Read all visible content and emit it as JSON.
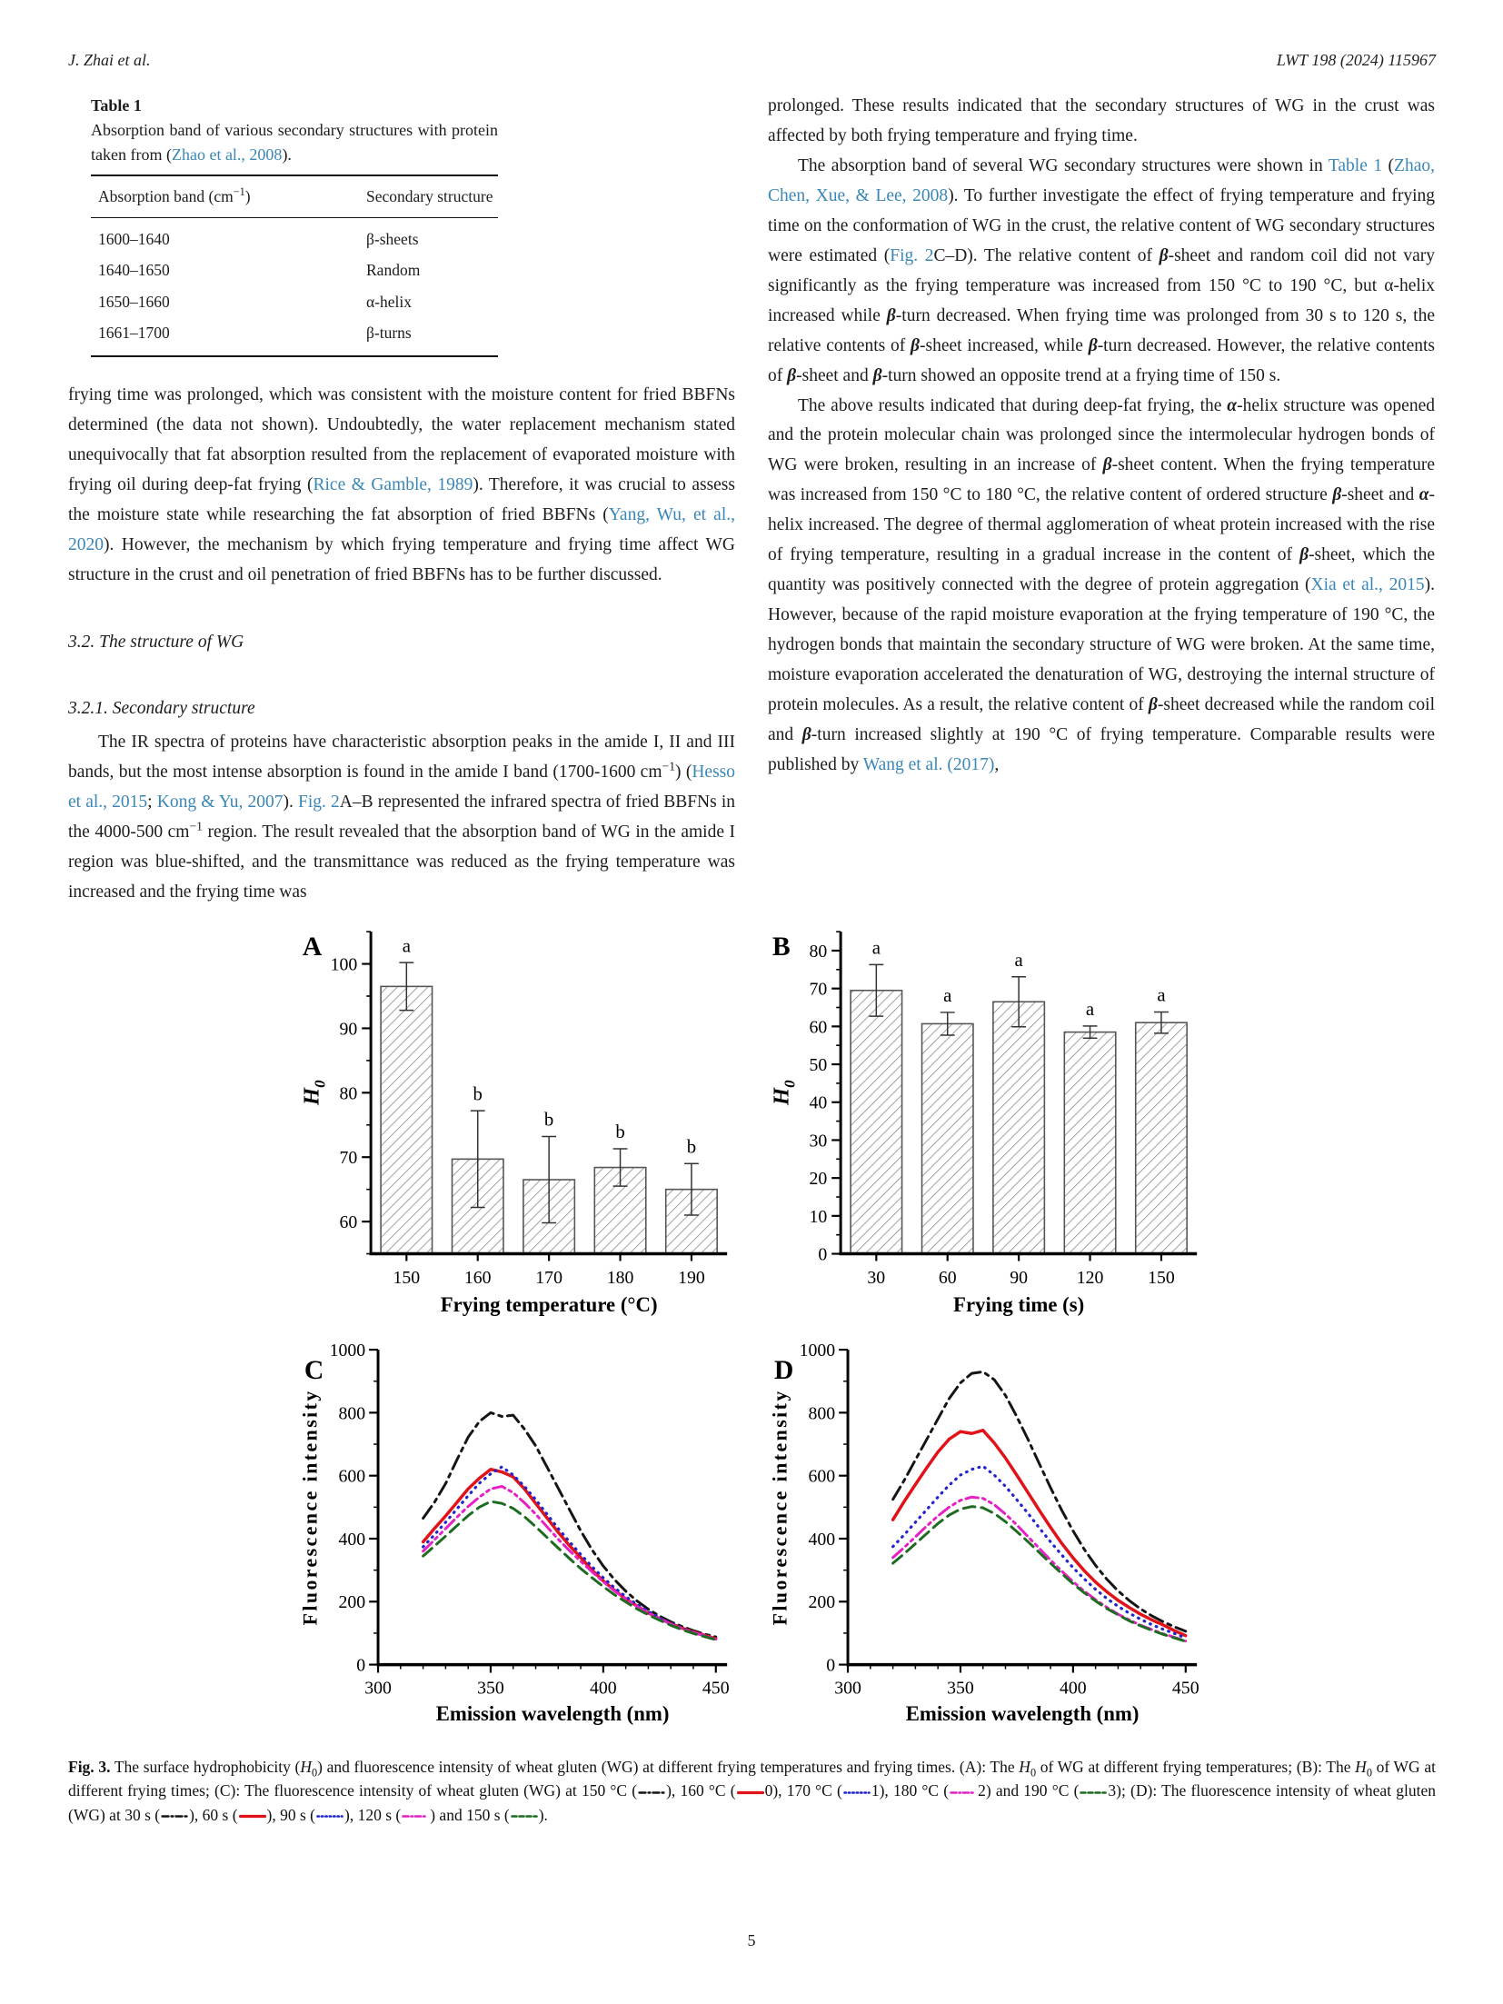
{
  "colors": {
    "link": "#3a87b7",
    "axis": "#000000",
    "hatch": "#8f8f8f",
    "bar_edge": "#555555"
  },
  "page": {
    "header_left": "J. Zhai et al.",
    "header_right": "LWT 198 (2024) 115967",
    "page_number": "5"
  },
  "table1": {
    "label": "Table 1",
    "caption_segments": [
      {
        "text": "Absorption band of various secondary structures with protein taken from ("
      },
      {
        "text": "Zhao et al., 2008",
        "style": "link"
      },
      {
        "text": ")."
      }
    ],
    "header_col1_segments": [
      {
        "text": "Absorption band (cm"
      },
      {
        "text": "−1",
        "style": "sup"
      },
      {
        "text": ")"
      }
    ],
    "header_col2": "Secondary structure",
    "rows": [
      [
        "1600–1640",
        "β-sheets"
      ],
      [
        "1640–1650",
        "Random"
      ],
      [
        "1650–1660",
        "α-helix"
      ],
      [
        "1661–1700",
        "β-turns"
      ]
    ]
  },
  "left_col": {
    "para1_segments": [
      {
        "text": "frying time was prolonged, which was consistent with the moisture content for fried BBFNs determined (the data not shown). Undoubtedly, the water replacement mechanism stated unequivocally that fat absorption resulted from the replacement of evaporated moisture with frying oil during deep-fat frying ("
      },
      {
        "text": "Rice & Gamble, 1989",
        "style": "link"
      },
      {
        "text": "). Therefore, it was crucial to assess the moisture state while researching the fat absorption of fried BBFNs ("
      },
      {
        "text": "Yang, Wu, et al., 2020",
        "style": "link"
      },
      {
        "text": "). However, the mechanism by which frying temperature and frying time affect WG structure in the crust and oil penetration of fried BBFNs has to be further discussed."
      }
    ],
    "section_heading": "3.2.  The structure of WG",
    "subsection_heading": "3.2.1.  Secondary structure",
    "para2_segments": [
      {
        "text": "The IR spectra of proteins have characteristic absorption peaks in the amide I, II and III bands, but the most intense absorption is found in the amide I band (1700-1600 cm"
      },
      {
        "text": "−1",
        "style": "sup"
      },
      {
        "text": ") ("
      },
      {
        "text": "Hesso et al., 2015",
        "style": "link"
      },
      {
        "text": "; "
      },
      {
        "text": "Kong & Yu, 2007",
        "style": "link"
      },
      {
        "text": "). "
      },
      {
        "text": "Fig. 2",
        "style": "link"
      },
      {
        "text": "A–B represented the infrared spectra of fried BBFNs in the 4000-500 cm"
      },
      {
        "text": "−1",
        "style": "sup"
      },
      {
        "text": " region. The result revealed that the absorption band of WG in the amide I region was blue-shifted, and the transmittance was reduced as the frying temperature was increased and the frying time was"
      }
    ]
  },
  "right_col": {
    "para1_segments": [
      {
        "text": "prolonged. These results indicated that the secondary structures of WG in the crust was affected by both frying temperature and frying time."
      }
    ],
    "para2_segments": [
      {
        "text": "The absorption band of several WG secondary structures were shown in "
      },
      {
        "text": "Table 1",
        "style": "link"
      },
      {
        "text": " ("
      },
      {
        "text": "Zhao, Chen, Xue, & Lee, 2008",
        "style": "link"
      },
      {
        "text": "). To further investigate the effect of frying temperature and frying time on the conformation of WG in the crust, the relative content of WG secondary structures were estimated ("
      },
      {
        "text": "Fig. 2",
        "style": "link"
      },
      {
        "text": "C–D). The relative content of "
      },
      {
        "text": "β",
        "style": "bi"
      },
      {
        "text": "-sheet and random coil did not vary significantly as the frying temperature was increased from 150 °C to 190 °C, but α-helix increased while "
      },
      {
        "text": "β",
        "style": "bi"
      },
      {
        "text": "-turn decreased. When frying time was prolonged from 30 s to 120 s, the relative contents of "
      },
      {
        "text": "β",
        "style": "bi"
      },
      {
        "text": "-sheet increased, while "
      },
      {
        "text": "β",
        "style": "bi"
      },
      {
        "text": "-turn decreased. However, the relative contents of "
      },
      {
        "text": "β",
        "style": "bi"
      },
      {
        "text": "-sheet and "
      },
      {
        "text": "β",
        "style": "bi"
      },
      {
        "text": "-turn showed an opposite trend at a frying time of 150 s."
      }
    ],
    "para3_segments": [
      {
        "text": "The above results indicated that during deep-fat frying, the "
      },
      {
        "text": "α",
        "style": "bi"
      },
      {
        "text": "-helix structure was opened and the protein molecular chain was prolonged since the intermolecular hydrogen bonds of WG were broken, resulting in an increase of "
      },
      {
        "text": "β",
        "style": "bi"
      },
      {
        "text": "-sheet content. When the frying temperature was increased from 150 °C to 180 °C, the relative content of ordered structure "
      },
      {
        "text": "β",
        "style": "bi"
      },
      {
        "text": "-sheet and "
      },
      {
        "text": "α",
        "style": "bi"
      },
      {
        "text": "-helix increased. The degree of thermal agglomeration of wheat protein increased with the rise of frying temperature, resulting in a gradual increase in the content of "
      },
      {
        "text": "β",
        "style": "bi"
      },
      {
        "text": "-sheet, which the quantity was positively connected with the degree of protein aggregation ("
      },
      {
        "text": "Xia et al., 2015",
        "style": "link"
      },
      {
        "text": "). However, because of the rapid moisture evaporation at the frying temperature of 190 °C, the hydrogen bonds that maintain the secondary structure of WG were broken. At the same time, moisture evaporation accelerated the denaturation of WG, destroying the internal structure of protein molecules. As a result, the relative content of "
      },
      {
        "text": "β",
        "style": "bi"
      },
      {
        "text": "-sheet decreased while the random coil and "
      },
      {
        "text": "β",
        "style": "bi"
      },
      {
        "text": "-turn increased slightly at 190 °C of frying temperature. Comparable results were published by "
      },
      {
        "text": "Wang et al. (2017)",
        "style": "link"
      },
      {
        "text": ","
      }
    ]
  },
  "figure": {
    "symbols": {
      "blackdashdot": {
        "color": "#151515",
        "dash": "7 3 2 3",
        "w": 2.4
      },
      "redsolid": {
        "color": "#e11218",
        "dash": "",
        "w": 3.2
      },
      "bluedot": {
        "color": "#2325cb",
        "dash": "1.4 3",
        "w": 2.6
      },
      "magentadashdot": {
        "color": "#e520c5",
        "dash": "6 3 1.5 3",
        "w": 2.6
      },
      "greendash": {
        "color": "#1d6b21",
        "dash": "5 3",
        "w": 2.6
      }
    },
    "caption_segments": [
      {
        "text": "Fig. 3.",
        "style": "b"
      },
      {
        "text": " The surface hydrophobicity ("
      },
      {
        "text": "H",
        "style": "i"
      },
      {
        "text": "0",
        "style": "sub"
      },
      {
        "text": ") and fluorescence intensity of wheat gluten (WG) at different frying temperatures and frying times. (A): The "
      },
      {
        "text": "H",
        "style": "i"
      },
      {
        "text": "0",
        "style": "sub"
      },
      {
        "text": " of WG at different frying temperatures; (B): The "
      },
      {
        "text": "H",
        "style": "i"
      },
      {
        "text": "0",
        "style": "sub"
      },
      {
        "text": " of WG at different frying times; (C): The fluorescence intensity of wheat gluten (WG) at 150 °C ("
      },
      {
        "sym": "blackdashdot"
      },
      {
        "text": "), 160 °C ("
      },
      {
        "sym": "redsolid"
      },
      {
        "text": "0), 170 °C ("
      },
      {
        "sym": "bluedot"
      },
      {
        "text": "1), 180 °C ("
      },
      {
        "sym": "magentadashdot"
      },
      {
        "text": "2) and 190 °C ("
      },
      {
        "sym": "greendash"
      },
      {
        "text": "3); (D): The fluorescence intensity of wheat gluten (WG) at 30 s ("
      },
      {
        "sym": "blackdashdot"
      },
      {
        "text": "), 60 s ("
      },
      {
        "sym": "redsolid"
      },
      {
        "text": "), 90 s ("
      },
      {
        "sym": "bluedot"
      },
      {
        "text": "), 120 s ("
      },
      {
        "sym": "magentadashdot"
      },
      {
        "text": ") and 150 s ("
      },
      {
        "sym": "greendash"
      },
      {
        "text": ")."
      }
    ]
  },
  "chart_data": [
    {
      "panel": "A",
      "type": "bar",
      "categories": [
        "150",
        "160",
        "170",
        "180",
        "190"
      ],
      "values": [
        96.5,
        69.7,
        66.5,
        68.4,
        65.0
      ],
      "errors": [
        3.7,
        7.5,
        6.7,
        2.9,
        4.0
      ],
      "sig_letters": [
        "a",
        "b",
        "b",
        "b",
        "b"
      ],
      "xlabel": "Frying temperature (°C)",
      "ylabel": "H",
      "ylabel_sub": "0",
      "ylim": [
        55,
        105
      ],
      "yticks": [
        60,
        70,
        80,
        90,
        100
      ],
      "yminor": 5
    },
    {
      "panel": "B",
      "type": "bar",
      "categories": [
        "30",
        "60",
        "90",
        "120",
        "150"
      ],
      "values": [
        69.5,
        60.7,
        66.5,
        58.5,
        61.0
      ],
      "errors": [
        6.8,
        3.0,
        6.6,
        1.6,
        2.8
      ],
      "sig_letters": [
        "a",
        "a",
        "a",
        "a",
        "a"
      ],
      "xlabel": "Frying  time (s)",
      "ylabel": "H",
      "ylabel_sub": "0",
      "ylim": [
        0,
        85
      ],
      "yticks": [
        0,
        10,
        20,
        30,
        40,
        50,
        60,
        70,
        80
      ],
      "yminor": 5
    },
    {
      "panel": "C",
      "type": "line",
      "xlabel": "Emission wavelength (nm)",
      "ylabel": "Fluorescence intensity",
      "xlim": [
        300,
        455
      ],
      "ylim": [
        0,
        1000
      ],
      "xticks": [
        300,
        350,
        400,
        450
      ],
      "yticks": [
        0,
        200,
        400,
        600,
        800,
        1000
      ],
      "xminor": 10,
      "yminor": 100,
      "x_start": 320,
      "x_step": 5,
      "series": [
        {
          "name": "150 °C",
          "color": "#151515",
          "dash": "16 6 4 6",
          "width": 3,
          "values": [
            465,
            515,
            575,
            650,
            722,
            772,
            800,
            788,
            792,
            748,
            695,
            628,
            560,
            492,
            425,
            365,
            313,
            270,
            233,
            202,
            176,
            154,
            136,
            121,
            108,
            97,
            88
          ]
        },
        {
          "name": "160 °C",
          "color": "#e11218",
          "dash": "",
          "width": 3.5,
          "values": [
            390,
            432,
            472,
            515,
            558,
            592,
            620,
            612,
            596,
            558,
            512,
            466,
            420,
            378,
            340,
            300,
            266,
            236,
            209,
            186,
            164,
            146,
            130,
            116,
            104,
            93,
            82
          ]
        },
        {
          "name": "170 °C",
          "color": "#2325cb",
          "dash": "0.8 6.5",
          "width": 3.2,
          "values": [
            374,
            412,
            452,
            494,
            536,
            576,
            606,
            628,
            602,
            566,
            524,
            478,
            432,
            390,
            350,
            311,
            276,
            244,
            216,
            191,
            169,
            149,
            131,
            116,
            103,
            92,
            80
          ]
        },
        {
          "name": "180 °C",
          "color": "#e520c5",
          "dash": "14 5 3 5 3 5",
          "width": 3,
          "values": [
            360,
            396,
            432,
            468,
            502,
            532,
            558,
            566,
            546,
            514,
            478,
            438,
            398,
            362,
            328,
            295,
            263,
            234,
            208,
            185,
            164,
            146,
            129,
            114,
            102,
            91,
            81
          ]
        },
        {
          "name": "190 °C",
          "color": "#1d6b21",
          "dash": "13 7",
          "width": 3,
          "values": [
            345,
            376,
            408,
            441,
            473,
            500,
            518,
            512,
            496,
            470,
            438,
            404,
            370,
            337,
            305,
            276,
            248,
            222,
            199,
            177,
            158,
            141,
            125,
            111,
            99,
            89,
            79
          ]
        }
      ]
    },
    {
      "panel": "D",
      "type": "line",
      "xlabel": "Emission wavelength (nm)",
      "ylabel": "Fluorescence intensity",
      "xlim": [
        300,
        455
      ],
      "ylim": [
        0,
        1000
      ],
      "xticks": [
        300,
        350,
        400,
        450
      ],
      "yticks": [
        0,
        200,
        400,
        600,
        800,
        1000
      ],
      "xminor": 10,
      "yminor": 100,
      "x_start": 320,
      "x_step": 5,
      "series": [
        {
          "name": "30 s",
          "color": "#151515",
          "dash": "16 6 4 6",
          "width": 3,
          "values": [
            525,
            585,
            650,
            715,
            780,
            845,
            895,
            925,
            930,
            905,
            855,
            788,
            715,
            638,
            562,
            490,
            425,
            366,
            315,
            271,
            234,
            203,
            177,
            155,
            136,
            120,
            106
          ]
        },
        {
          "name": "60 s",
          "color": "#e11218",
          "dash": "",
          "width": 3.5,
          "values": [
            460,
            518,
            572,
            625,
            675,
            716,
            740,
            734,
            744,
            704,
            656,
            602,
            546,
            490,
            436,
            385,
            339,
            298,
            262,
            231,
            204,
            181,
            160,
            142,
            126,
            108,
            92
          ]
        },
        {
          "name": "90 s",
          "color": "#2325cb",
          "dash": "0.8 6.5",
          "width": 3.2,
          "values": [
            375,
            412,
            452,
            492,
            532,
            570,
            602,
            620,
            630,
            602,
            566,
            524,
            480,
            434,
            390,
            348,
            308,
            272,
            239,
            210,
            185,
            163,
            144,
            127,
            112,
            99,
            85
          ]
        },
        {
          "name": "120 s",
          "color": "#e520c5",
          "dash": "14 5 3 5 3 5",
          "width": 3,
          "values": [
            340,
            372,
            406,
            440,
            472,
            500,
            522,
            532,
            528,
            508,
            478,
            444,
            406,
            369,
            332,
            297,
            263,
            233,
            206,
            182,
            160,
            142,
            125,
            111,
            98,
            87,
            75
          ]
        },
        {
          "name": "150 s",
          "color": "#1d6b21",
          "dash": "13 7",
          "width": 3,
          "values": [
            322,
            352,
            384,
            416,
            448,
            475,
            494,
            502,
            498,
            480,
            454,
            423,
            390,
            356,
            322,
            289,
            257,
            228,
            202,
            178,
            158,
            139,
            123,
            109,
            96,
            85,
            74
          ]
        }
      ]
    }
  ]
}
